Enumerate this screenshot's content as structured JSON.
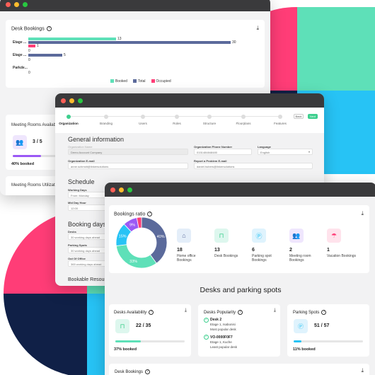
{
  "colors": {
    "teal": "#5ee0b8",
    "navy": "#102047",
    "pink": "#ff3d77",
    "sky": "#27c3f5",
    "blue_gray": "#5b6a9b",
    "purple": "#9b59f5",
    "green": "#3ecf8e"
  },
  "window1": {
    "desk_bookings_title": "Desk Bookings",
    "rows": [
      {
        "label": "Etage ...",
        "booked": 13,
        "total": 30,
        "occupied": 1
      },
      {
        "label": "Etage ...",
        "booked": 0,
        "total": 5,
        "occupied": 0
      },
      {
        "label": "Parkde...",
        "booked": 0,
        "total": 0,
        "occupied": 0
      }
    ],
    "legend": {
      "booked": "Booked",
      "total": "Total",
      "occupied": "Occupied"
    },
    "meeting_rooms_title": "Meeting Rooms Availab",
    "meeting_rooms_value": "3 / 5",
    "meeting_rooms_percent": 40,
    "meeting_rooms_booked": "40% booked",
    "meeting_rooms_util_title": "Meeting Rooms Utilizat"
  },
  "window2": {
    "steps": [
      "Organization",
      "Branding",
      "Users",
      "Roles",
      "Structure",
      "Floorplans",
      "Features"
    ],
    "back_label": "Back",
    "next_label": "Next",
    "general_title": "General information",
    "org_name_label": "Organization Name",
    "org_name_value": "Demo Account Company",
    "org_phone_label": "Organization Phone Number",
    "org_phone_value": "0151484848480",
    "language_label": "Language",
    "language_value": "English",
    "org_email_label": "Organization E-mail",
    "org_email_value": "anne.schmidt@linkersolutions",
    "report_email_label": "Report a Problem E-mail",
    "report_email_value": "daniel.hubers@linkersolutions",
    "schedule_title": "Schedule",
    "working_days_label": "Working Days",
    "working_days_value": "From: Monday",
    "midday_label": "Mid Day Hour",
    "midday_value": "12:00",
    "booking_days_title": "Booking days ran",
    "desks_label": "Desks",
    "desks_value": "30 working days ahead",
    "parking_label": "Parking Spots",
    "parking_value": "30 working days ahead",
    "ooo_label": "Out Of Office",
    "ooo_value": "365 working days ahead",
    "bookable_title": "Bookable Resour"
  },
  "window3": {
    "bookings_ratio_title": "Bookings ratio",
    "donut": [
      {
        "label": "40%",
        "value": 40,
        "color": "#5b6a9b"
      },
      {
        "label": "33%",
        "value": 33,
        "color": "#5ee0b8"
      },
      {
        "label": "15%",
        "value": 15,
        "color": "#27c3f5"
      },
      {
        "label": "9%",
        "value": 9,
        "color": "#9b59f5"
      },
      {
        "label": "",
        "value": 3,
        "color": "#ff3d77"
      }
    ],
    "stats": [
      {
        "num": "18",
        "label": "Home office\nBookings",
        "icon": "home-icon",
        "bg": "#e4eef9",
        "fg": "#5b6a9b"
      },
      {
        "num": "13",
        "label": "Desk Bookings",
        "icon": "desk-icon",
        "bg": "#ddf7ee",
        "fg": "#3ecf8e"
      },
      {
        "num": "6",
        "label": "Parking spot\nBookings",
        "icon": "parking-icon",
        "bg": "#dff3fd",
        "fg": "#27c3f5"
      },
      {
        "num": "2",
        "label": "Meeting room\nBookings",
        "icon": "meeting-room-icon",
        "bg": "#efe6fd",
        "fg": "#9b59f5"
      },
      {
        "num": "1",
        "label": "Vacation Bookings",
        "icon": "vacation-icon",
        "bg": "#ffe3ec",
        "fg": "#ff3d77"
      }
    ],
    "section_title": "Desks and parking spots",
    "desks_availability_title": "Desks Availability",
    "desks_availability_value": "22 / 35",
    "desks_availability_percent": 37,
    "desks_availability_booked": "37% booked",
    "desks_popularity_title": "Desks Popularity",
    "pop1_name": "Desk 2",
    "pop1_loc": "Etage 1, Isabonisi",
    "pop1_note": "Most popular desk",
    "pop2_name": "VO-0000F0F7",
    "pop2_loc": "Etage 1, Kuche",
    "pop2_note": "Least popular desk",
    "parking_spots_title": "Parking Spots",
    "parking_spots_value": "51 / 57",
    "parking_spots_percent": 11,
    "parking_spots_booked": "11% booked",
    "desk_bookings_title": "Desk Bookings"
  }
}
